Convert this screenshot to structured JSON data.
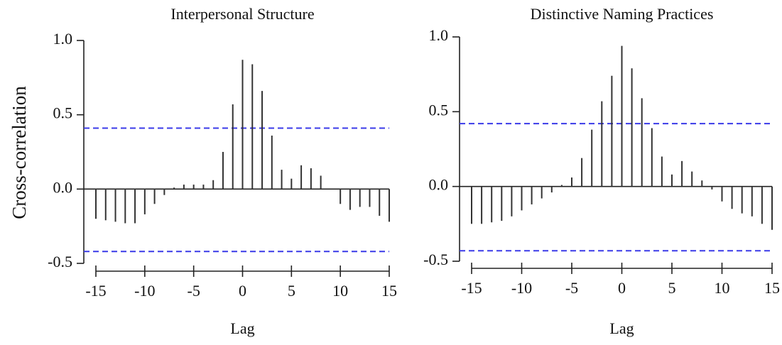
{
  "y_label": "Cross-correlation",
  "chart_data": [
    {
      "type": "stem",
      "title": "Interpersonal Structure",
      "x_label": "Lag",
      "color": "#333333",
      "x": [
        -15,
        -14,
        -13,
        -12,
        -11,
        -10,
        -9,
        -8,
        -7,
        -6,
        -5,
        -4,
        -3,
        -2,
        -1,
        0,
        1,
        2,
        3,
        4,
        5,
        6,
        7,
        8,
        9,
        10,
        11,
        12,
        13,
        14,
        15
      ],
      "values": [
        -0.2,
        -0.21,
        -0.22,
        -0.23,
        -0.23,
        -0.17,
        -0.1,
        -0.04,
        0.01,
        0.03,
        0.03,
        0.03,
        0.06,
        0.25,
        0.57,
        0.87,
        0.84,
        0.66,
        0.36,
        0.13,
        0.07,
        0.16,
        0.14,
        0.09,
        0.0,
        -0.1,
        -0.14,
        -0.12,
        -0.12,
        -0.18,
        -0.22
      ],
      "conf_bounds": [
        0.41,
        -0.42
      ],
      "conf_color": "#3a3ae8",
      "xlim": [
        -15,
        15
      ],
      "xticks": [
        -15,
        -10,
        -5,
        0,
        5,
        10,
        15
      ],
      "ylim": [
        -0.5,
        1.0
      ],
      "yticks": [
        {
          "value": -0.5,
          "label": "-0.5"
        },
        {
          "value": 0,
          "label": "0.0"
        },
        {
          "value": 0.5,
          "label": "0.5"
        },
        {
          "value": 1,
          "label": "1.0"
        }
      ]
    },
    {
      "type": "stem",
      "title": "Distinctive Naming Practices",
      "x_label": "Lag",
      "color": "#333333",
      "x": [
        -15,
        -14,
        -13,
        -12,
        -11,
        -10,
        -9,
        -8,
        -7,
        -6,
        -5,
        -4,
        -3,
        -2,
        -1,
        0,
        1,
        2,
        3,
        4,
        5,
        6,
        7,
        8,
        9,
        10,
        11,
        12,
        13,
        14,
        15
      ],
      "values": [
        -0.25,
        -0.25,
        -0.24,
        -0.23,
        -0.2,
        -0.16,
        -0.12,
        -0.08,
        -0.04,
        0.01,
        0.06,
        0.19,
        0.38,
        0.57,
        0.74,
        0.94,
        0.79,
        0.59,
        0.39,
        0.2,
        0.08,
        0.17,
        0.1,
        0.04,
        -0.02,
        -0.1,
        -0.15,
        -0.18,
        -0.2,
        -0.25,
        -0.29
      ],
      "conf_bounds": [
        0.42,
        -0.43
      ],
      "conf_color": "#3a3ae8",
      "xlim": [
        -15,
        15
      ],
      "xticks": [
        -15,
        -10,
        -5,
        0,
        5,
        10,
        15
      ],
      "ylim": [
        -0.5,
        1.0
      ],
      "yticks": [
        {
          "value": -0.5,
          "label": "-0.5"
        },
        {
          "value": 0,
          "label": "0.0"
        },
        {
          "value": 0.5,
          "label": "0.5"
        },
        {
          "value": 1,
          "label": "1.0"
        }
      ]
    }
  ]
}
